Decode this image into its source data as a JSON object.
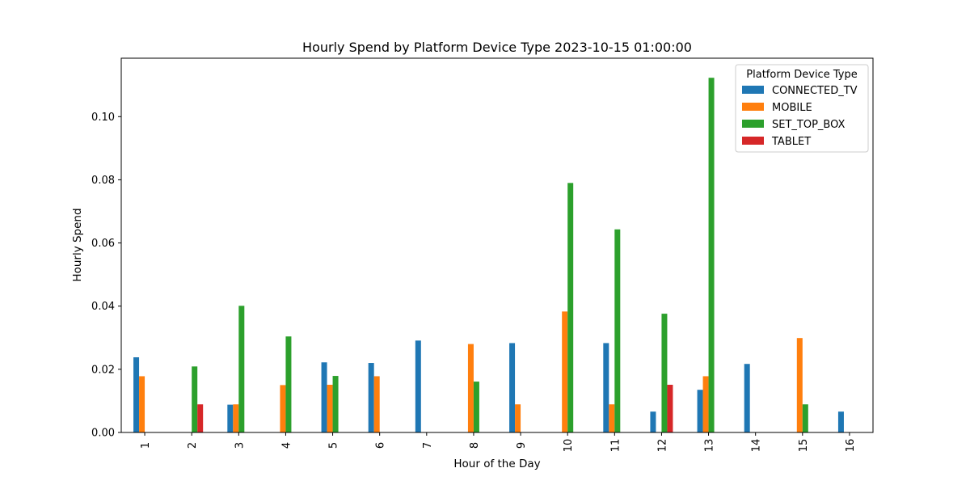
{
  "chart_data": {
    "type": "bar",
    "title": "Hourly Spend by Platform Device Type 2023-10-15 01:00:00",
    "xlabel": "Hour of the Day",
    "ylabel": "Hourly Spend",
    "categories": [
      "1",
      "2",
      "3",
      "4",
      "5",
      "6",
      "7",
      "8",
      "9",
      "10",
      "11",
      "12",
      "13",
      "14",
      "15",
      "16"
    ],
    "ylim": [
      0,
      0.1185
    ],
    "yticks": [
      0.0,
      0.02,
      0.04,
      0.06,
      0.08,
      0.1
    ],
    "ytick_labels": [
      "0.00",
      "0.02",
      "0.04",
      "0.06",
      "0.08",
      "0.10"
    ],
    "grid": false,
    "legend": {
      "title": "Platform Device Type",
      "placement": "top-right"
    },
    "series": [
      {
        "name": "CONNECTED_TV",
        "color": "#1f77b4",
        "values": [
          0.0238,
          0,
          0.0088,
          0,
          0.0222,
          0.022,
          0.0291,
          0,
          0.0283,
          0,
          0.0283,
          0.0066,
          0.0135,
          0.0217,
          0,
          0.0066
        ]
      },
      {
        "name": "MOBILE",
        "color": "#ff7f0e",
        "values": [
          0.0178,
          0,
          0.0089,
          0.015,
          0.0151,
          0.0178,
          0,
          0.028,
          0.0089,
          0.0383,
          0.0089,
          0,
          0.0178,
          0,
          0.0299,
          0
        ]
      },
      {
        "name": "SET_TOP_BOX",
        "color": "#2ca02c",
        "values": [
          0,
          0.0209,
          0.0401,
          0.0304,
          0.0179,
          0,
          0,
          0.0161,
          0,
          0.079,
          0.0643,
          0.0376,
          0.1123,
          0,
          0.0089,
          0
        ]
      },
      {
        "name": "TABLET",
        "color": "#d62728",
        "values": [
          0,
          0.0089,
          0,
          0,
          0,
          0,
          0,
          0,
          0,
          0,
          0,
          0.0151,
          0,
          0,
          0,
          0
        ]
      }
    ]
  }
}
